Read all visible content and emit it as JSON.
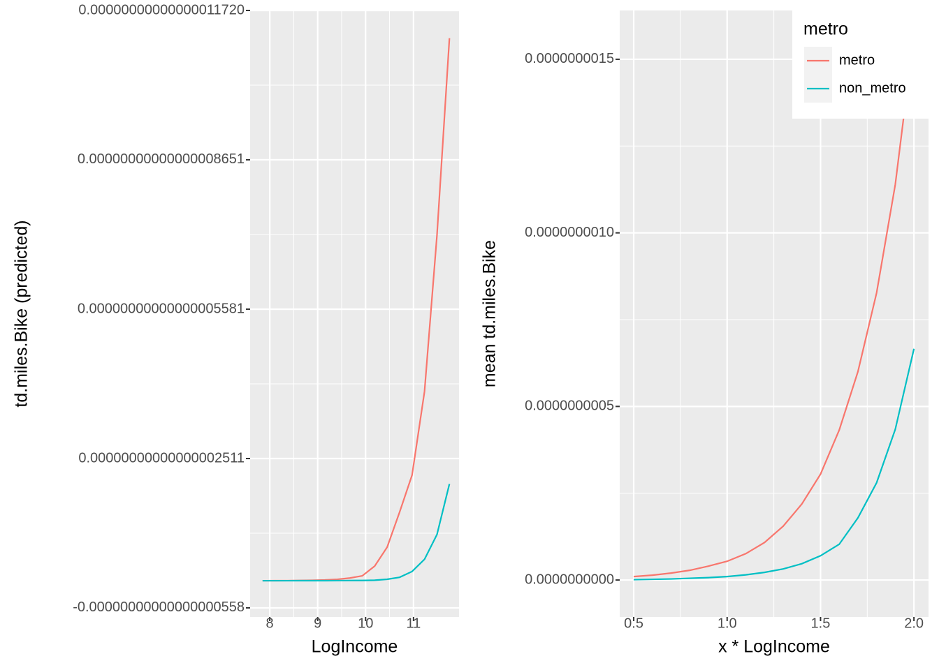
{
  "chart_data": [
    {
      "type": "line",
      "x_label": "LogIncome",
      "y_label": "td.miles.Bike (predicted)",
      "x": [
        7.85,
        8.11,
        8.37,
        8.63,
        8.89,
        9.15,
        9.41,
        9.67,
        9.93,
        10.19,
        10.45,
        10.71,
        10.97,
        11.23,
        11.49,
        11.75
      ],
      "series": [
        {
          "name": "metro",
          "color": "#F8766D",
          "values": [
            0,
            1e-20,
            2e-20,
            4e-20,
            8e-20,
            1.5e-19,
            2.9e-19,
            5.5e-19,
            1e-18,
            3e-18,
            6.9e-18,
            1.41e-17,
            2.17e-17,
            3.89e-17,
            7.1e-17,
            1.115e-16
          ]
        },
        {
          "name": "non_metro",
          "color": "#00BFC4",
          "values": [
            0,
            1e-21,
            2e-21,
            4e-21,
            7e-21,
            1.2e-20,
            2e-20,
            3.3e-20,
            5e-20,
            1e-19,
            3e-19,
            7e-19,
            1.9e-18,
            4.4e-18,
            9.5e-18,
            1.99e-17
          ]
        }
      ],
      "xlim": [
        7.59,
        11.95
      ],
      "xticks": [
        8,
        9,
        10,
        11
      ],
      "ylim": [
        -7.45e-18,
        1.172e-16
      ],
      "yticks": [
        {
          "value": -5.58e-18,
          "label": "-0.00000000000000000558"
        },
        {
          "value": 2.511e-17,
          "label": "0.00000000000000002511"
        },
        {
          "value": 5.581e-17,
          "label": "0.00000000000000005581"
        },
        {
          "value": 8.651e-17,
          "label": "0.00000000000000008651"
        },
        {
          "value": 1.172e-16,
          "label": "0.00000000000000011720"
        }
      ],
      "grid": true
    },
    {
      "type": "line",
      "x_label": "x * LogIncome",
      "y_label": "mean td.miles.Bike",
      "x": [
        0.5,
        0.6,
        0.7,
        0.8,
        0.9,
        1.0,
        1.1,
        1.2,
        1.3,
        1.4,
        1.5,
        1.6,
        1.7,
        1.8,
        1.9,
        2.0
      ],
      "series": [
        {
          "name": "metro",
          "color": "#F8766D",
          "values": [
            1e-11,
            1.4e-11,
            2e-11,
            2.8e-11,
            4e-11,
            5.4e-11,
            7.6e-11,
            1.08e-10,
            1.55e-10,
            2.19e-10,
            3.05e-10,
            4.32e-10,
            6e-10,
            8.27e-10,
            1.139e-09,
            1.57e-09
          ]
        },
        {
          "name": "non_metro",
          "color": "#00BFC4",
          "values": [
            1e-12,
            2e-12,
            3e-12,
            5e-12,
            7e-12,
            1e-11,
            1.5e-11,
            2.2e-11,
            3.2e-11,
            4.7e-11,
            7e-11,
            1.03e-10,
            1.79e-10,
            2.8e-10,
            4.34e-10,
            6.66e-10
          ]
        }
      ],
      "xlim": [
        0.425,
        2.078
      ],
      "xticks": [
        0.5,
        {
          "value": 1,
          "label": "1.0"
        },
        1.5,
        {
          "value": 2,
          "label": "2.0"
        }
      ],
      "ylim": [
        -1.064e-10,
        1.6406e-09
      ],
      "yticks": [
        {
          "value": 0,
          "label": "0.0000000000"
        },
        {
          "value": 5e-10,
          "label": "0.0000000005"
        },
        {
          "value": 1e-09,
          "label": "0.0000000010"
        },
        {
          "value": 1.5e-09,
          "label": "0.0000000015"
        }
      ],
      "grid": true,
      "legend": "top-right",
      "legend_title": "metro"
    }
  ]
}
